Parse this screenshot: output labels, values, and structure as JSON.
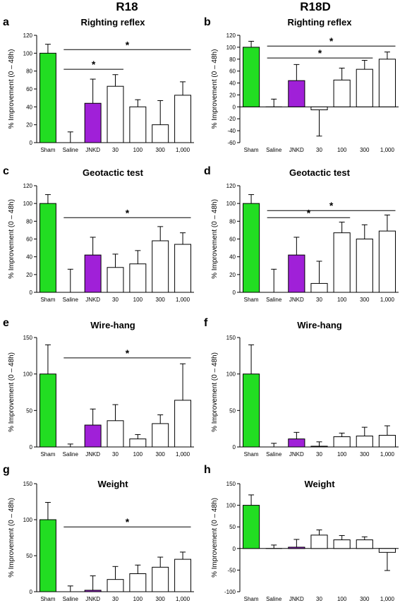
{
  "column_titles": [
    "R18",
    "R18D"
  ],
  "colors": {
    "sham": "#22dd22",
    "jnkd": "#a020d8",
    "other": "#ffffff",
    "stroke": "#000000"
  },
  "chart_data": [
    {
      "letter": "a",
      "type": "bar",
      "title": "Righting reflex",
      "ylabel": "% Improvement (0 – 48h)",
      "categories": [
        "Sham",
        "Saline",
        "JNKD",
        "30",
        "100",
        "300",
        "1,000"
      ],
      "values": [
        100,
        0,
        44,
        63,
        40,
        20,
        53
      ],
      "errors": [
        10,
        12,
        27,
        13,
        8,
        27,
        15
      ],
      "ylim": [
        0,
        120
      ],
      "yticks": [
        0,
        20,
        40,
        60,
        80,
        100,
        120
      ],
      "significance": [
        {
          "from": "Saline",
          "to": "30",
          "y": 82,
          "label": "*"
        },
        {
          "from": "Saline",
          "to": "1,000",
          "y": 104,
          "label": "*"
        }
      ]
    },
    {
      "letter": "b",
      "type": "bar",
      "title": "Righting reflex",
      "ylabel": "% Improvement (0 – 48h)",
      "categories": [
        "Sham",
        "Saline",
        "JNKD",
        "30",
        "100",
        "300",
        "1,000"
      ],
      "values": [
        100,
        0,
        44,
        -5,
        45,
        63,
        80
      ],
      "errors": [
        10,
        13,
        27,
        44,
        20,
        15,
        12
      ],
      "ylim": [
        -60,
        120
      ],
      "yticks": [
        -60,
        -40,
        -20,
        0,
        20,
        40,
        60,
        80,
        100,
        120
      ],
      "significance": [
        {
          "from": "Saline",
          "to": "300",
          "y": 82,
          "label": "*"
        },
        {
          "from": "Saline",
          "to": "1,000",
          "y": 102,
          "label": "*"
        }
      ]
    },
    {
      "letter": "c",
      "type": "bar",
      "title": "Geotactic test",
      "ylabel": "% Improvement (0 – 48h)",
      "categories": [
        "Sham",
        "Saline",
        "JNKD",
        "30",
        "100",
        "300",
        "1,000"
      ],
      "values": [
        100,
        0,
        42,
        28,
        32,
        58,
        54
      ],
      "errors": [
        10,
        26,
        20,
        15,
        15,
        16,
        13
      ],
      "ylim": [
        0,
        120
      ],
      "yticks": [
        0,
        20,
        40,
        60,
        80,
        100,
        120
      ],
      "significance": [
        {
          "from": "Saline",
          "to": "1,000",
          "y": 84,
          "label": "*"
        }
      ]
    },
    {
      "letter": "d",
      "type": "bar",
      "title": "Geotactic test",
      "ylabel": "% Improvement (0 – 48h)",
      "categories": [
        "Sham",
        "Saline",
        "JNKD",
        "30",
        "100",
        "300",
        "1,000"
      ],
      "values": [
        100,
        0,
        42,
        10,
        67,
        60,
        69
      ],
      "errors": [
        10,
        26,
        20,
        25,
        12,
        16,
        18
      ],
      "ylim": [
        0,
        120
      ],
      "yticks": [
        0,
        20,
        40,
        60,
        80,
        100,
        120
      ],
      "significance": [
        {
          "from": "Saline",
          "to": "100",
          "y": 84,
          "label": "*"
        },
        {
          "from": "Saline",
          "to": "1,000",
          "y": 92,
          "label": "*"
        }
      ]
    },
    {
      "letter": "e",
      "type": "bar",
      "title": "Wire-hang",
      "ylabel": "% Improvement (0 – 48h)",
      "categories": [
        "Sham",
        "Saline",
        "JNKD",
        "30",
        "100",
        "300",
        "1,000"
      ],
      "values": [
        100,
        0,
        30,
        36,
        11,
        32,
        64
      ],
      "errors": [
        40,
        4,
        22,
        22,
        6,
        12,
        50
      ],
      "ylim": [
        0,
        150
      ],
      "yticks": [
        0,
        50,
        100,
        150
      ],
      "significance": [
        {
          "from": "Saline",
          "to": "1,000",
          "y": 122,
          "label": "*"
        }
      ]
    },
    {
      "letter": "f",
      "type": "bar",
      "title": "Wire-hang",
      "ylabel": "% Improvement (0 – 48h)",
      "categories": [
        "Sham",
        "Saline",
        "JNKD",
        "30",
        "100",
        "300",
        "1,000"
      ],
      "values": [
        100,
        0,
        11,
        1,
        14,
        15,
        16
      ],
      "errors": [
        40,
        5,
        9,
        6,
        5,
        12,
        13
      ],
      "ylim": [
        0,
        150
      ],
      "yticks": [
        0,
        50,
        100,
        150
      ],
      "significance": []
    },
    {
      "letter": "g",
      "type": "bar",
      "title": "Weight",
      "ylabel": "% Improvement (0 – 48h)",
      "categories": [
        "Sham",
        "Saline",
        "JNKD",
        "30",
        "100",
        "300",
        "1,000"
      ],
      "values": [
        100,
        0,
        2,
        17,
        25,
        34,
        45
      ],
      "errors": [
        24,
        8,
        20,
        18,
        12,
        14,
        10
      ],
      "ylim": [
        0,
        150
      ],
      "yticks": [
        0,
        50,
        100,
        150
      ],
      "significance": [
        {
          "from": "Saline",
          "to": "1,000",
          "y": 90,
          "label": "*"
        }
      ]
    },
    {
      "letter": "h",
      "type": "bar",
      "title": "Weight",
      "ylabel": "% Improvement (0 – 48h)",
      "categories": [
        "Sham",
        "Saline",
        "JNKD",
        "30",
        "100",
        "300",
        "1,000"
      ],
      "values": [
        100,
        0,
        3,
        31,
        20,
        20,
        -9
      ],
      "errors": [
        24,
        8,
        18,
        12,
        10,
        7,
        42
      ],
      "ylim": [
        -100,
        150
      ],
      "yticks": [
        -100,
        -50,
        0,
        50,
        100,
        150
      ],
      "significance": []
    }
  ]
}
